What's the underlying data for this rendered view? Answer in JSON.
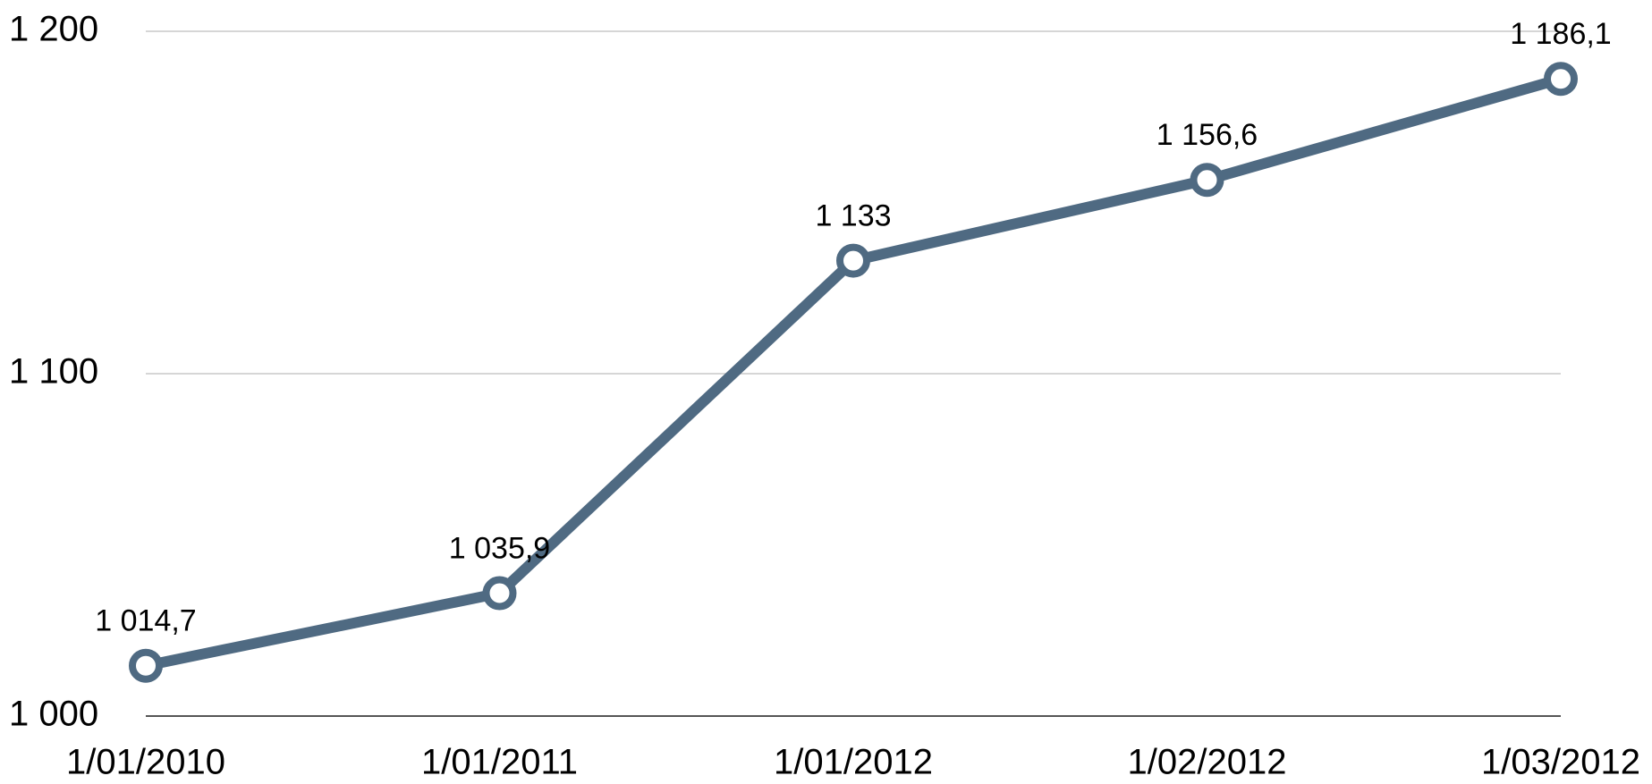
{
  "chart_data": {
    "type": "line",
    "categories": [
      "1/01/2010",
      "1/01/2011",
      "1/01/2012",
      "1/02/2012",
      "1/03/2012"
    ],
    "series": [
      {
        "name": null,
        "color": "#4f6a82",
        "values": [
          1014.7,
          1035.9,
          1133,
          1156.6,
          1186.1
        ],
        "value_labels": [
          "1 014,7",
          "1 035,9",
          "1 133",
          "1 156,6",
          "1 186,1"
        ]
      }
    ],
    "ylim": [
      1000,
      1200
    ],
    "yticks": [
      {
        "value": 1000,
        "label": "1 000"
      },
      {
        "value": 1100,
        "label": "1 100"
      },
      {
        "value": 1200,
        "label": "1 200"
      }
    ],
    "grid": true
  }
}
